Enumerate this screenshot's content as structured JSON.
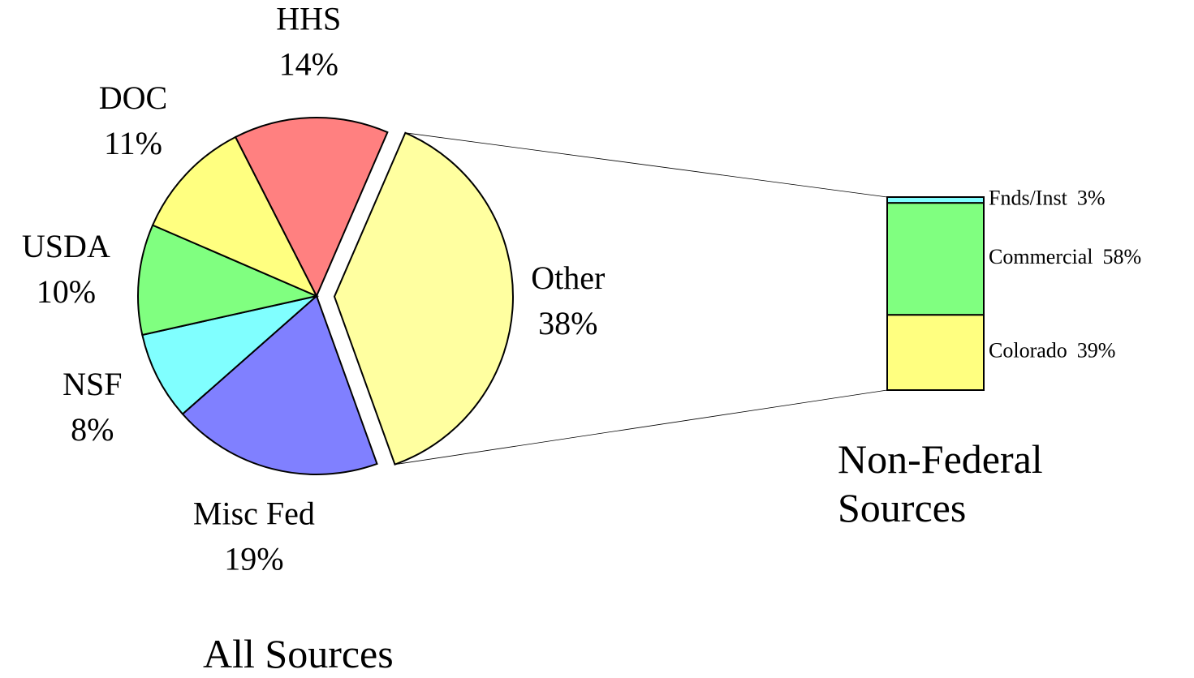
{
  "chart_data": [
    {
      "type": "pie",
      "title": "All Sources",
      "categories": [
        "Other",
        "Misc Fed",
        "NSF",
        "USDA",
        "DOC",
        "HHS"
      ],
      "values": [
        38,
        19,
        8,
        10,
        11,
        14
      ],
      "value_labels": [
        "38%",
        "19%",
        "8%",
        "10%",
        "11%",
        "14%"
      ],
      "colors": [
        "#ffffa0",
        "#8080ff",
        "#80ffff",
        "#80ff80",
        "#ffff80",
        "#ff8080"
      ]
    },
    {
      "type": "stacked-bar",
      "title": "Non-Federal Sources",
      "categories": [
        "Colorado",
        "Commercial",
        "Fnds/Inst"
      ],
      "values": [
        39,
        58,
        3
      ],
      "value_labels": [
        "39%",
        "58%",
        "3%"
      ],
      "colors": [
        "#ffff80",
        "#80ff80",
        "#80ffff"
      ]
    }
  ]
}
